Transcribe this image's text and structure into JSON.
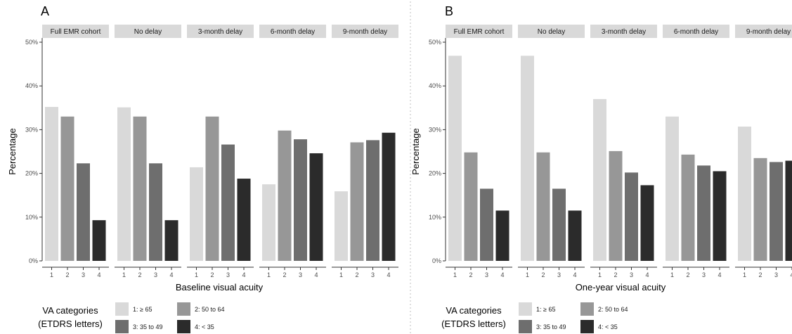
{
  "colors": {
    "cat1": "#d9d9d9",
    "cat2": "#979797",
    "cat3": "#6e6e6e",
    "cat4": "#2b2b2b",
    "strip": "#d9d9d9",
    "axis": "#333333",
    "divider": "#bfbfbf"
  },
  "chart_data": [
    {
      "type": "bar",
      "panel_label": "A",
      "xlabel": "Baseline visual acuity",
      "ylabel": "Percentage",
      "ylim": [
        0,
        50
      ],
      "y_ticks": [
        "0%",
        "10%",
        "20%",
        "30%",
        "40%",
        "50%"
      ],
      "categories": [
        "1",
        "2",
        "3",
        "4"
      ],
      "facets": [
        {
          "name": "Full EMR cohort",
          "values": [
            35.2,
            33.0,
            22.3,
            9.3
          ]
        },
        {
          "name": "No delay",
          "values": [
            35.1,
            33.0,
            22.3,
            9.3
          ]
        },
        {
          "name": "3-month delay",
          "values": [
            21.4,
            33.0,
            26.6,
            18.8
          ]
        },
        {
          "name": "6-month delay",
          "values": [
            17.5,
            29.8,
            27.8,
            24.6
          ]
        },
        {
          "name": "9-month delay",
          "values": [
            15.9,
            27.1,
            27.6,
            29.3
          ]
        }
      ]
    },
    {
      "type": "bar",
      "panel_label": "B",
      "xlabel": "One-year visual acuity",
      "ylabel": "Percentage",
      "ylim": [
        0,
        50
      ],
      "y_ticks": [
        "0%",
        "10%",
        "20%",
        "30%",
        "40%",
        "50%"
      ],
      "categories": [
        "1",
        "2",
        "3",
        "4"
      ],
      "facets": [
        {
          "name": "Full EMR cohort",
          "values": [
            46.9,
            24.8,
            16.5,
            11.5
          ]
        },
        {
          "name": "No delay",
          "values": [
            46.9,
            24.8,
            16.5,
            11.5
          ]
        },
        {
          "name": "3-month delay",
          "values": [
            37.0,
            25.1,
            20.2,
            17.3
          ]
        },
        {
          "name": "6-month delay",
          "values": [
            33.0,
            24.3,
            21.8,
            20.5
          ]
        },
        {
          "name": "9-month delay",
          "values": [
            30.7,
            23.5,
            22.6,
            22.9
          ]
        }
      ]
    }
  ],
  "legend": {
    "title_line1": "VA categories",
    "title_line2": "(ETDRS letters)",
    "items": [
      "1: ≥ 65",
      "2: 50 to 64",
      "3: 35 to 49",
      "4: < 35"
    ]
  }
}
